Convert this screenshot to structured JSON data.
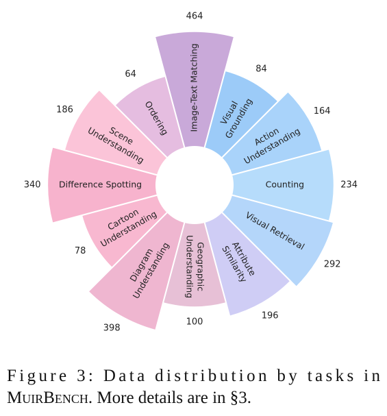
{
  "chart_data": {
    "type": "polar-bar",
    "radial_scale": "log",
    "categories": [
      [
        "Image-Text Matching"
      ],
      [
        "Visual",
        "Grounding"
      ],
      [
        "Action",
        "Understanding"
      ],
      [
        "Counting"
      ],
      [
        "Visual Retrieval"
      ],
      [
        "Attribute",
        "Similarity"
      ],
      [
        "Geographic",
        "Understanding"
      ],
      [
        "Diagram",
        "Understanding"
      ],
      [
        "Cartoon",
        "Understanding"
      ],
      [
        "Difference Spotting"
      ],
      [
        "Scene",
        "Understanding"
      ],
      [
        "Ordering"
      ]
    ],
    "values": [
      464,
      84,
      164,
      234,
      292,
      196,
      100,
      398,
      78,
      340,
      186,
      64
    ],
    "colors": [
      "#c9a9d9",
      "#9ccbf8",
      "#a9d3fa",
      "#b6dcfb",
      "#b4d6fa",
      "#cfcdf5",
      "#e7c0d6",
      "#efb6d0",
      "#f8b8d0",
      "#f7b3cd",
      "#fbc4d8",
      "#e5bde0"
    ]
  },
  "caption": [
    "Figure 3:  Data distribution by tasks in",
    "MuirBench",
    ". More details are in §3."
  ]
}
